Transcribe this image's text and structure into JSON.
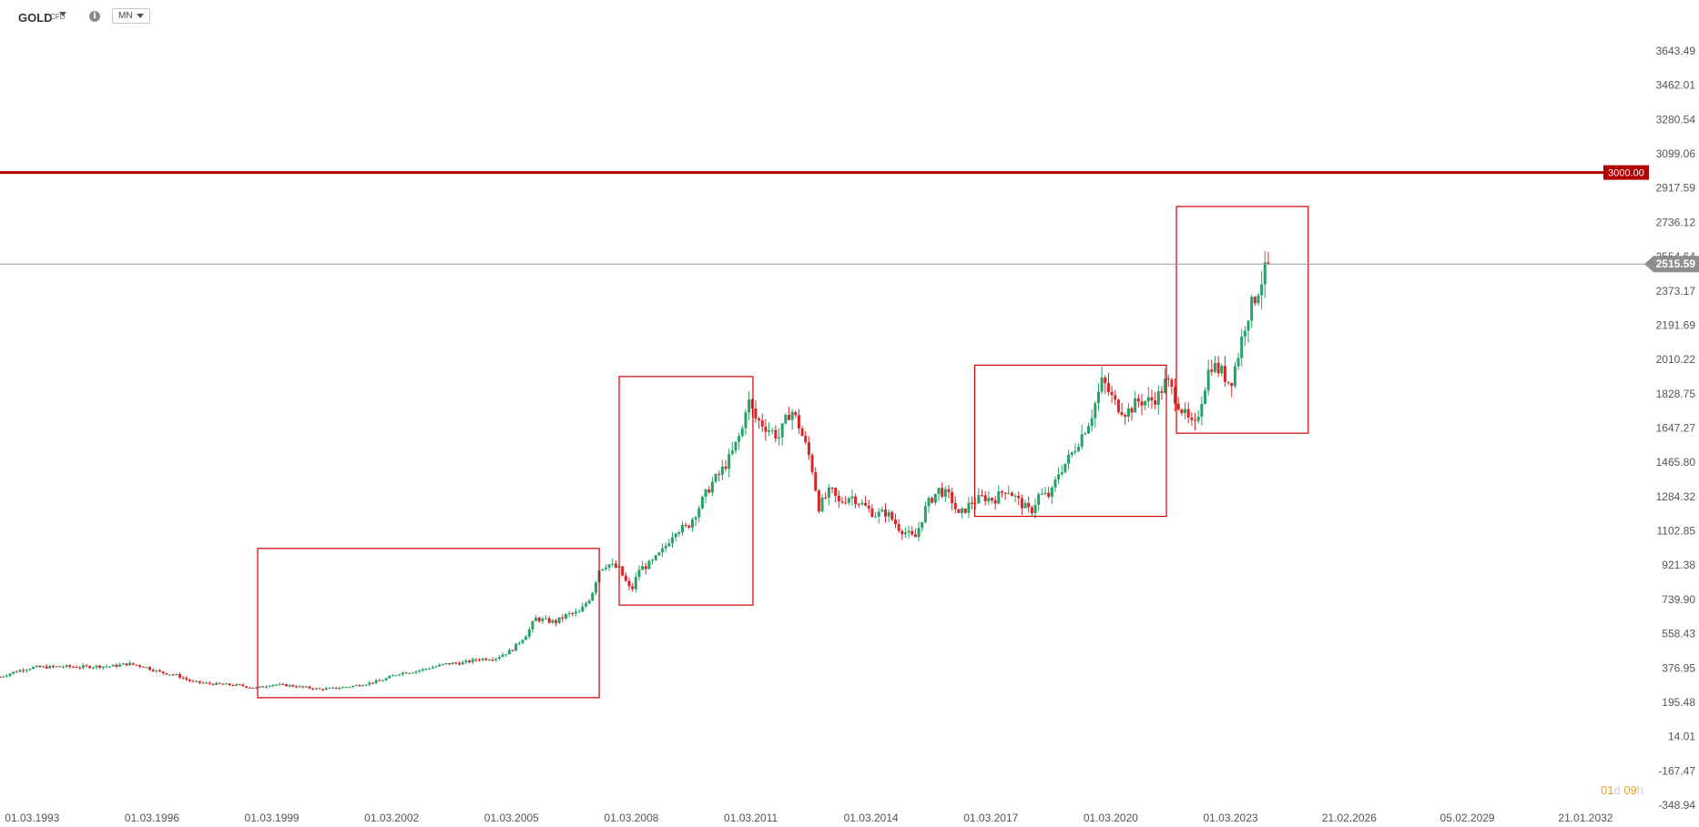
{
  "toolbar": {
    "symbol": "GOLD",
    "instrument_type": "CFD",
    "info_icon": "info-icon",
    "timeframe": "MN"
  },
  "countdown": {
    "days": "01",
    "day_unit": "d",
    "hours": "09",
    "hour_unit": "h"
  },
  "colors": {
    "up": "#26a269",
    "down": "#d62828",
    "level_line": "#b00000",
    "price_line": "#999999",
    "box": "#cc0000"
  },
  "chart_data": {
    "type": "candlestick",
    "title": "",
    "xlabel": "",
    "ylabel": "",
    "interval": "monthly",
    "ylim": [
      -348.94,
      3643.49
    ],
    "y_ticks": [
      "3643.49",
      "3462.01",
      "3280.54",
      "3099.06",
      "2917.59",
      "2736.12",
      "2554.64",
      "2373.17",
      "2191.69",
      "2010.22",
      "1828.75",
      "1647.27",
      "1465.80",
      "1284.32",
      "1102.85",
      "921.38",
      "739.90",
      "558.43",
      "376.95",
      "195.48",
      "14.01",
      "-167.47",
      "-348.94"
    ],
    "x_ticks": [
      "01.03.1993",
      "01.03.1996",
      "01.03.1999",
      "01.03.2002",
      "01.03.2005",
      "01.03.2008",
      "01.03.2011",
      "01.03.2014",
      "01.03.2017",
      "01.03.2020",
      "01.03.2023",
      "21.02.2026",
      "05.02.2029",
      "21.01.2032"
    ],
    "x_range": [
      1993.0,
      2033.8
    ],
    "horizontal_levels": [
      {
        "value": 3000.0,
        "label": "3000.00"
      }
    ],
    "current_price": {
      "value": 2515.59,
      "label": "2515.59"
    },
    "annotation_boxes": [
      {
        "x0": 1999.45,
        "x1": 2008.0,
        "y0": 220,
        "y1": 1010
      },
      {
        "x0": 2008.5,
        "x1": 2011.85,
        "y0": 710,
        "y1": 1920
      },
      {
        "x0": 2017.4,
        "x1": 2022.2,
        "y0": 1180,
        "y1": 1980
      },
      {
        "x0": 2022.45,
        "x1": 2025.75,
        "y0": 1620,
        "y1": 2820
      }
    ],
    "series": [
      {
        "points": [
          [
            1993.0,
            330
          ],
          [
            1993.4,
            360
          ],
          [
            1993.8,
            380
          ],
          [
            1994.2,
            382
          ],
          [
            1994.6,
            385
          ],
          [
            1995.0,
            382
          ],
          [
            1995.4,
            386
          ],
          [
            1995.8,
            386
          ],
          [
            1996.2,
            400
          ],
          [
            1996.6,
            385
          ],
          [
            1997.0,
            355
          ],
          [
            1997.4,
            340
          ],
          [
            1997.8,
            305
          ],
          [
            1998.2,
            295
          ],
          [
            1998.6,
            290
          ],
          [
            1999.0,
            285
          ],
          [
            1999.4,
            270
          ],
          [
            1999.8,
            290
          ],
          [
            2000.2,
            285
          ],
          [
            2000.6,
            275
          ],
          [
            2001.0,
            265
          ],
          [
            2001.4,
            270
          ],
          [
            2001.8,
            280
          ],
          [
            2002.2,
            295
          ],
          [
            2002.6,
            315
          ],
          [
            2003.0,
            350
          ],
          [
            2003.4,
            360
          ],
          [
            2003.8,
            380
          ],
          [
            2004.2,
            400
          ],
          [
            2004.6,
            405
          ],
          [
            2005.0,
            425
          ],
          [
            2005.4,
            430
          ],
          [
            2005.8,
            470
          ],
          [
            2006.2,
            560
          ],
          [
            2006.4,
            640
          ],
          [
            2006.6,
            630
          ],
          [
            2006.9,
            620
          ],
          [
            2007.2,
            660
          ],
          [
            2007.5,
            670
          ],
          [
            2007.8,
            760
          ],
          [
            2008.0,
            900
          ],
          [
            2008.2,
            930
          ],
          [
            2008.5,
            900
          ],
          [
            2008.8,
            780
          ],
          [
            2009.0,
            900
          ],
          [
            2009.3,
            930
          ],
          [
            2009.6,
            1000
          ],
          [
            2009.9,
            1110
          ],
          [
            2010.2,
            1120
          ],
          [
            2010.5,
            1230
          ],
          [
            2010.8,
            1350
          ],
          [
            2011.0,
            1400
          ],
          [
            2011.3,
            1500
          ],
          [
            2011.6,
            1650
          ],
          [
            2011.7,
            1810
          ],
          [
            2011.9,
            1700
          ],
          [
            2012.2,
            1650
          ],
          [
            2012.5,
            1600
          ],
          [
            2012.8,
            1750
          ],
          [
            2013.0,
            1660
          ],
          [
            2013.3,
            1470
          ],
          [
            2013.5,
            1230
          ],
          [
            2013.8,
            1320
          ],
          [
            2014.0,
            1250
          ],
          [
            2014.3,
            1290
          ],
          [
            2014.6,
            1240
          ],
          [
            2014.9,
            1190
          ],
          [
            2015.2,
            1200
          ],
          [
            2015.5,
            1120
          ],
          [
            2015.9,
            1060
          ],
          [
            2016.2,
            1240
          ],
          [
            2016.5,
            1320
          ],
          [
            2016.8,
            1280
          ],
          [
            2017.0,
            1180
          ],
          [
            2017.3,
            1250
          ],
          [
            2017.6,
            1280
          ],
          [
            2017.9,
            1270
          ],
          [
            2018.2,
            1330
          ],
          [
            2018.5,
            1260
          ],
          [
            2018.8,
            1200
          ],
          [
            2019.0,
            1290
          ],
          [
            2019.3,
            1290
          ],
          [
            2019.5,
            1410
          ],
          [
            2019.8,
            1500
          ],
          [
            2020.0,
            1580
          ],
          [
            2020.3,
            1700
          ],
          [
            2020.6,
            1900
          ],
          [
            2020.9,
            1780
          ],
          [
            2021.2,
            1730
          ],
          [
            2021.5,
            1790
          ],
          [
            2021.8,
            1790
          ],
          [
            2022.0,
            1820
          ],
          [
            2022.2,
            1900
          ],
          [
            2022.4,
            1820
          ],
          [
            2022.7,
            1700
          ],
          [
            2022.9,
            1640
          ],
          [
            2023.1,
            1820
          ],
          [
            2023.3,
            1990
          ],
          [
            2023.6,
            1940
          ],
          [
            2023.8,
            1880
          ],
          [
            2024.0,
            2040
          ],
          [
            2024.2,
            2230
          ],
          [
            2024.4,
            2330
          ],
          [
            2024.6,
            2440
          ],
          [
            2024.75,
            2515.59
          ]
        ]
      }
    ]
  }
}
